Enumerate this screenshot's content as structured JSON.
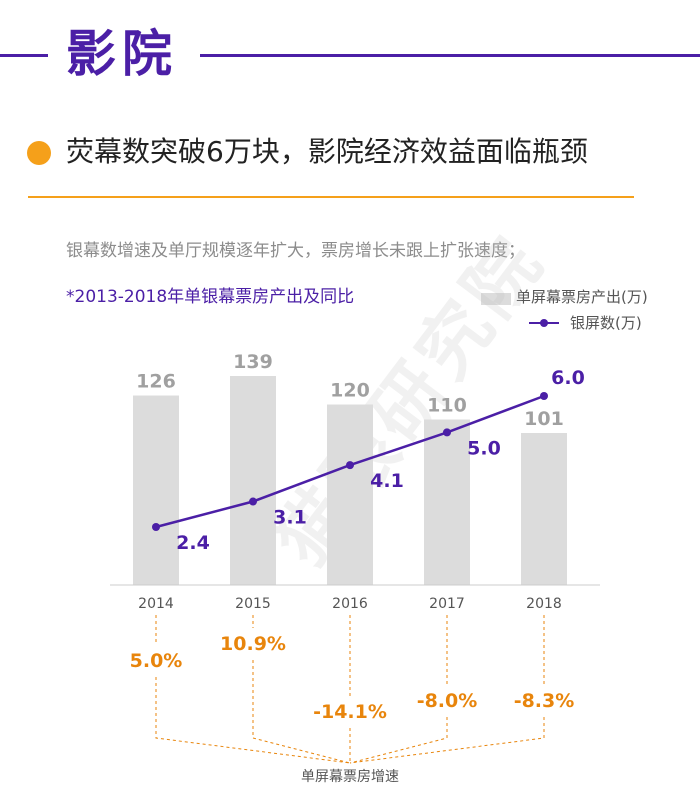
{
  "section": {
    "title": "影院"
  },
  "headline": "荧幕数突破6万块，影院经济效益面临瓶颈",
  "subtitle": "银幕数增速及单厅规模逐年扩大，票房增长未跟上扩张速度；",
  "watermark": "猫眼研究院",
  "colors": {
    "accent_purple": "#4b1fa6",
    "accent_orange": "#f5a01a",
    "bar_gray": "#dcdcdc",
    "growth_orange": "#e8850c"
  },
  "chart_data": {
    "type": "bar",
    "title": "*2013-2018年单银幕票房产出及同比",
    "categories": [
      "2014",
      "2015",
      "2016",
      "2017",
      "2018"
    ],
    "series": [
      {
        "name": "单屏幕票房产出(万)",
        "type": "bar",
        "values": [
          126,
          139,
          120,
          110,
          101
        ]
      },
      {
        "name": "银屏数(万)",
        "type": "line",
        "values": [
          2.4,
          3.1,
          4.1,
          5.0,
          6.0
        ]
      }
    ],
    "bar_value_labels": [
      "126",
      "139",
      "120",
      "110",
      "101"
    ],
    "line_value_labels": [
      "2.4",
      "3.1",
      "4.1",
      "5.0",
      "6.0"
    ],
    "growth": {
      "name": "单屏幕票房增速",
      "labels": [
        "5.0%",
        "10.9%",
        "-14.1%",
        "-8.0%",
        "-8.3%"
      ],
      "values": [
        5.0,
        10.9,
        -14.1,
        -8.0,
        -8.3
      ]
    },
    "legend": {
      "placement": "top-right"
    },
    "grid": false
  }
}
